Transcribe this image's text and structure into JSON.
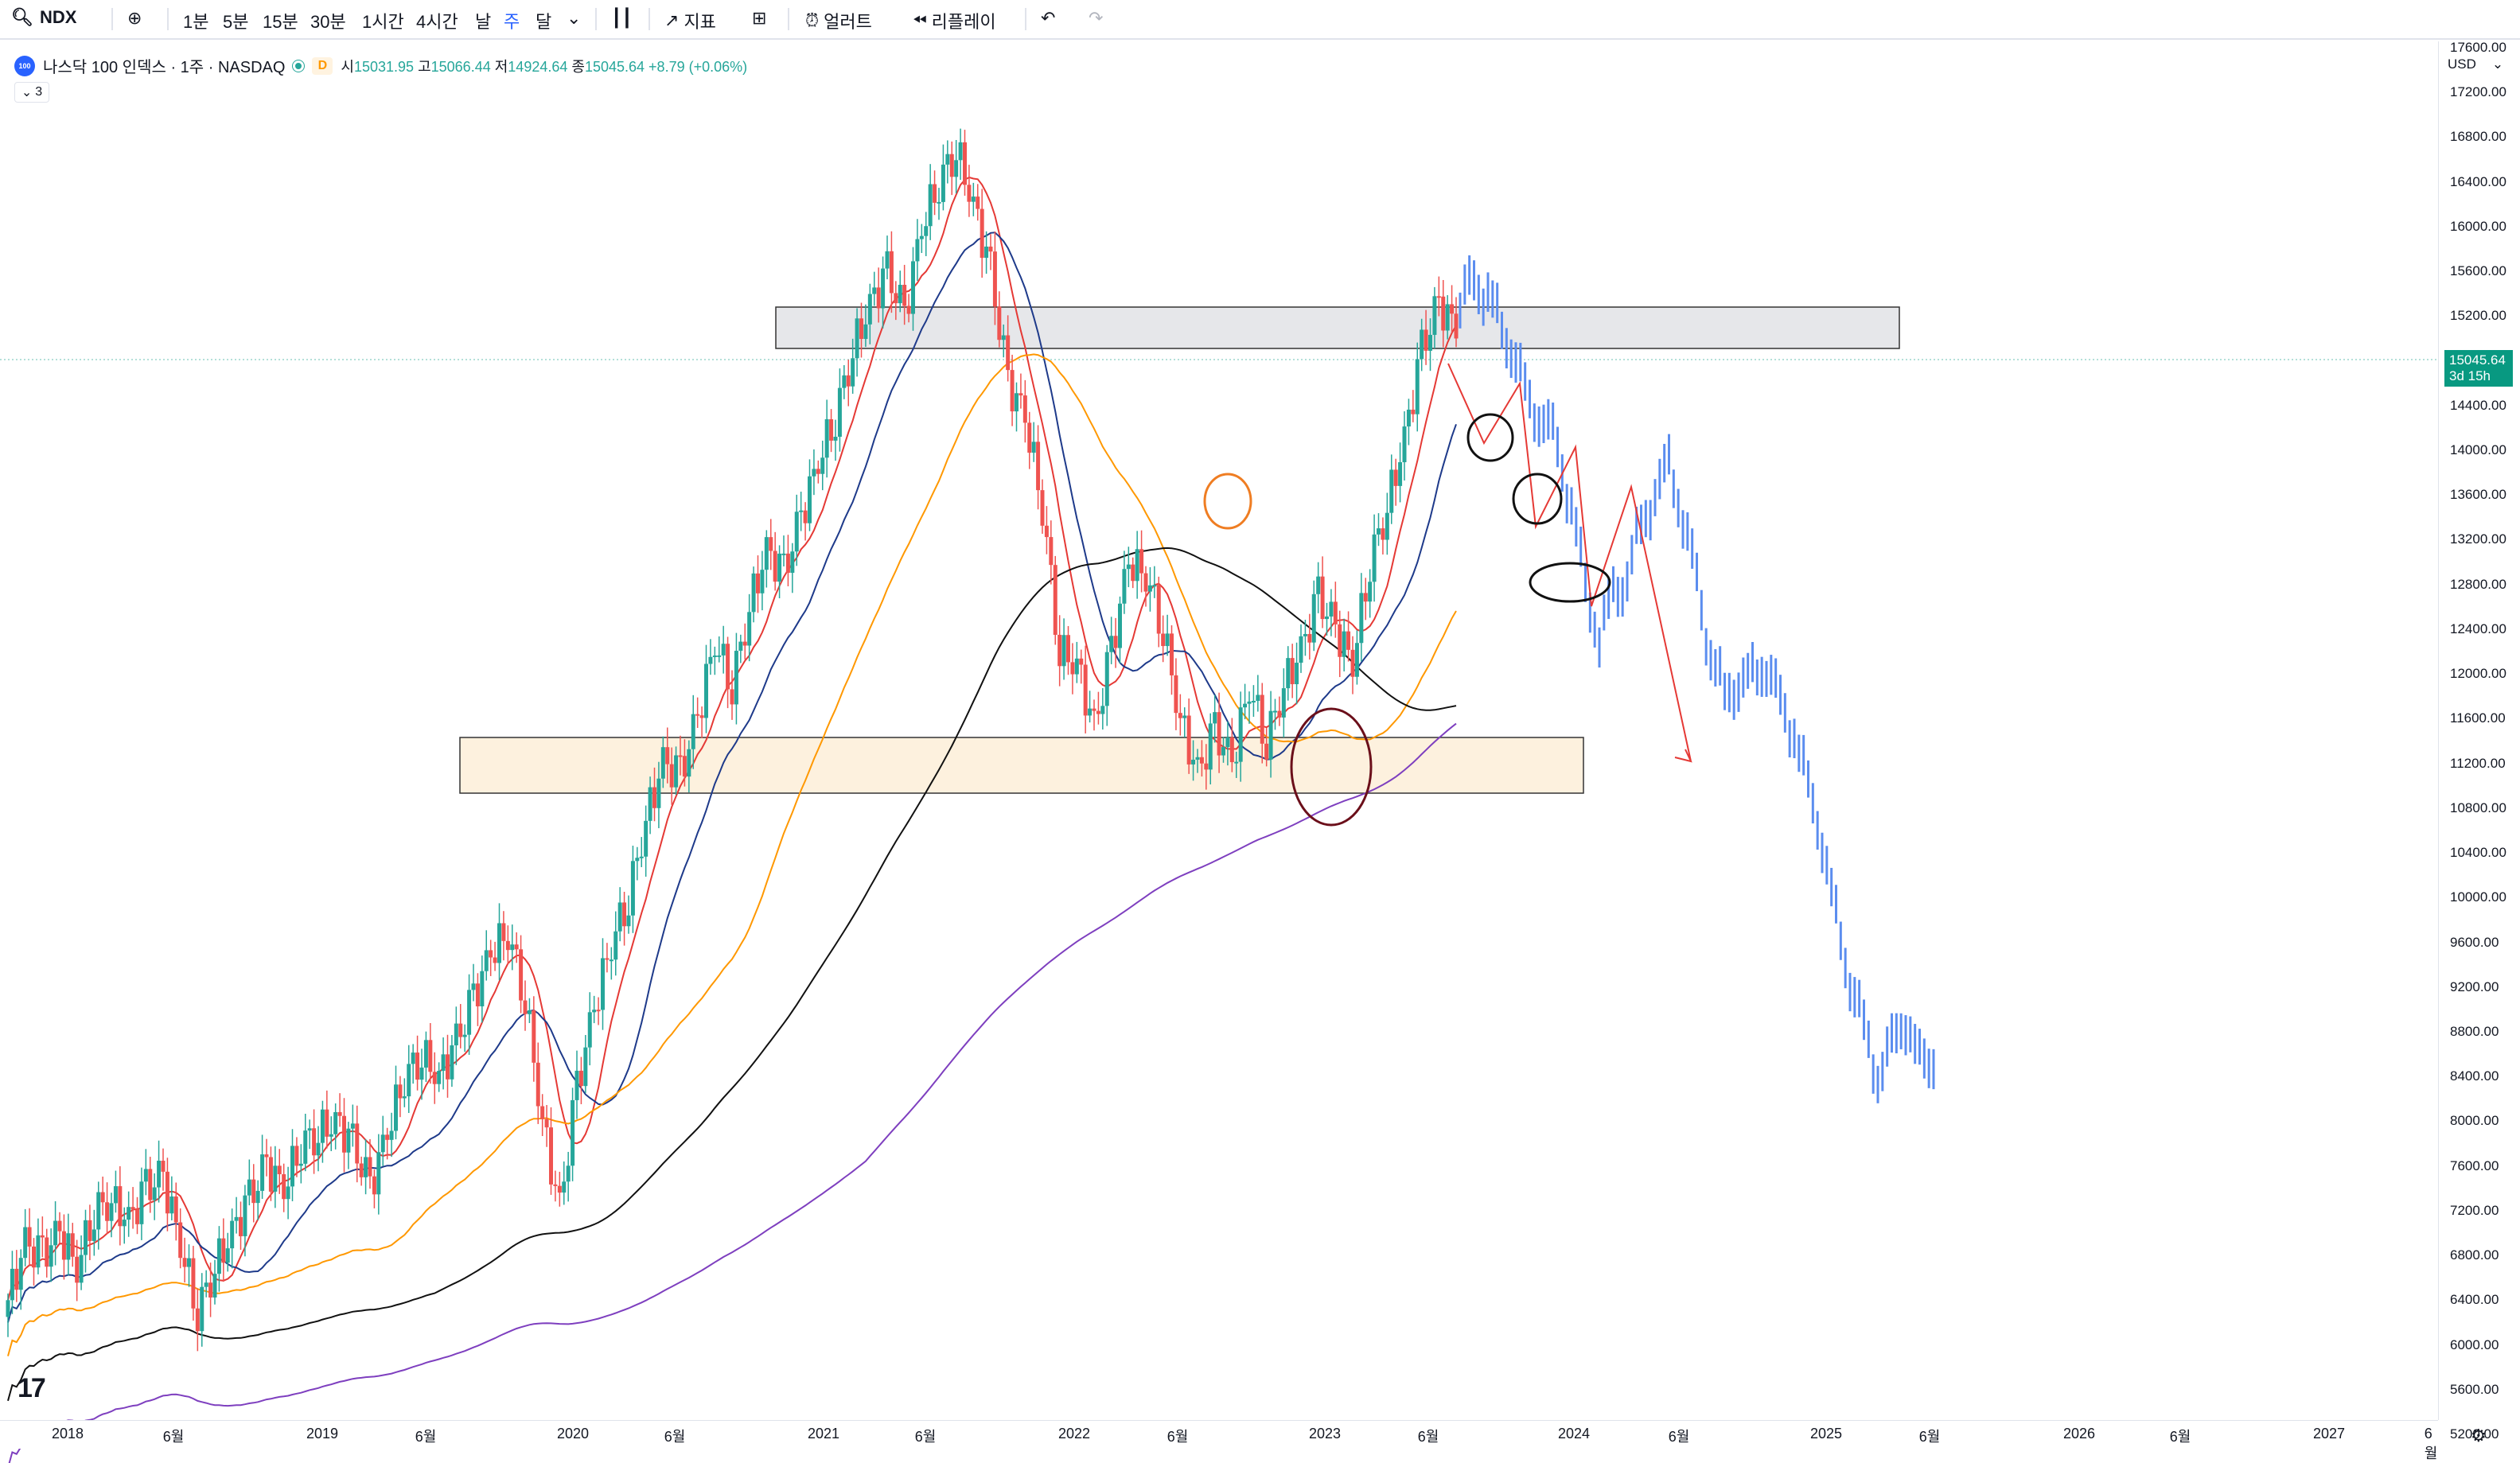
{
  "toolbar": {
    "symbol": "NDX",
    "intervals": [
      "1분",
      "5분",
      "15분",
      "30분",
      "1시간",
      "4시간",
      "날",
      "주",
      "달"
    ],
    "active_interval": "주",
    "indicators_label": "지표",
    "alert_label": "얼러트",
    "replay_label": "리플레이"
  },
  "legend": {
    "logo_text": "100",
    "title": "나스닥 100 인덱스 · 1주 · NASDAQ",
    "badge": "D",
    "open_label": "시",
    "open": "15031.95",
    "high_label": "고",
    "high": "15066.44",
    "low_label": "저",
    "low": "14924.64",
    "close_label": "종",
    "close": "15045.64",
    "change": "+8.79 (+0.06%)",
    "indicator_count": "3"
  },
  "price_axis": {
    "currency": "USD",
    "labels": [
      "17600.00",
      "17200.00",
      "16800.00",
      "16400.00",
      "16000.00",
      "15600.00",
      "15200.00",
      "14400.00",
      "14000.00",
      "13600.00",
      "13200.00",
      "12800.00",
      "12400.00",
      "12000.00",
      "11600.00",
      "11200.00",
      "10800.00",
      "10400.00",
      "10000.00",
      "9600.00",
      "9200.00",
      "8800.00",
      "8400.00",
      "8000.00",
      "7600.00",
      "7200.00",
      "6800.00",
      "6400.00",
      "6000.00",
      "5600.00",
      "5200.00"
    ],
    "last_price": "15045.64",
    "countdown": "3d 15h"
  },
  "time_axis": {
    "labels": [
      "2018",
      "6월",
      "2019",
      "6월",
      "2020",
      "6월",
      "2021",
      "6월",
      "2022",
      "6월",
      "2023",
      "6월",
      "2024",
      "6월",
      "2025",
      "6월",
      "2026",
      "6월",
      "2027",
      "6월"
    ]
  },
  "colors": {
    "up": "#26a69a",
    "down": "#ef5350",
    "projection": "#5b8def",
    "ma_red": "#e53935",
    "ma_blue": "#1e3a8a",
    "ma_orange": "#ff9800",
    "ma_black": "#111111",
    "ma_purple": "#7e3fbf"
  },
  "chart_data": {
    "type": "candlestick",
    "ylim": [
      5000,
      17800
    ],
    "closes": [
      6400,
      6900,
      6800,
      7000,
      6700,
      7200,
      7300,
      7100,
      7400,
      7500,
      6900,
      6300,
      6700,
      7000,
      7300,
      7600,
      7400,
      7800,
      7900,
      8000,
      7800,
      7400,
      7900,
      8400,
      8600,
      8400,
      8700,
      9100,
      9500,
      9700,
      9100,
      8000,
      7200,
      8300,
      9000,
      9600,
      10000,
      10700,
      11200,
      11100,
      11600,
      12300,
      11900,
      12600,
      13100,
      12900,
      13400,
      13900,
      14300,
      14900,
      15300,
      15600,
      15200,
      16000,
      16400,
      16700,
      16200,
      15600,
      14600,
      14300,
      13500,
      12200,
      12100,
      11500,
      12200,
      13000,
      12900,
      12400,
      11600,
      11100,
      11500,
      11200,
      11900,
      11400,
      11900,
      12200,
      12700,
      12400,
      12100,
      13000,
      13500,
      14100,
      14900,
      15300,
      15100
    ],
    "projection": [
      15300,
      15500,
      15400,
      15100,
      14800,
      14400,
      14300,
      14000,
      13500,
      12800,
      12300,
      12700,
      12900,
      13300,
      13600,
      13900,
      13400,
      12800,
      12200,
      11800,
      11900,
      12000,
      12100,
      11700,
      11500,
      11000,
      10500,
      9800,
      9300,
      8800,
      8400,
      8700,
      8900,
      8500,
      8600
    ]
  }
}
